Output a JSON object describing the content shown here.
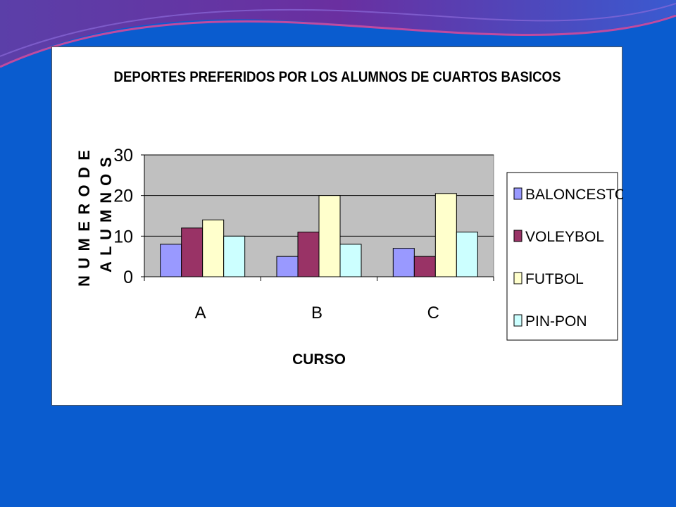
{
  "colors": {
    "background": "#0a5ccf",
    "plot_area": "#c0c0c0",
    "series": [
      "#9999ff",
      "#993366",
      "#ffffcc",
      "#ccffff"
    ]
  },
  "chart_data": {
    "type": "bar",
    "title": "DEPORTES PREFERIDOS POR LOS ALUMNOS DE CUARTOS BASICOS",
    "xlabel": "CURSO",
    "ylabel_lines": [
      "N U M E R O  D E",
      "A L U M N O S"
    ],
    "categories": [
      "A",
      "B",
      "C"
    ],
    "series": [
      {
        "name": "BALONCESTO",
        "values": [
          8,
          5,
          7
        ]
      },
      {
        "name": "VOLEYBOL",
        "values": [
          12,
          11,
          5
        ]
      },
      {
        "name": "FUTBOL",
        "values": [
          14,
          20,
          20.5
        ]
      },
      {
        "name": "PIN-PON",
        "values": [
          10,
          8,
          11
        ]
      }
    ],
    "ylim": [
      0,
      30
    ],
    "yticks": [
      0,
      10,
      20,
      30
    ],
    "grid": true,
    "legend_position": "right"
  }
}
